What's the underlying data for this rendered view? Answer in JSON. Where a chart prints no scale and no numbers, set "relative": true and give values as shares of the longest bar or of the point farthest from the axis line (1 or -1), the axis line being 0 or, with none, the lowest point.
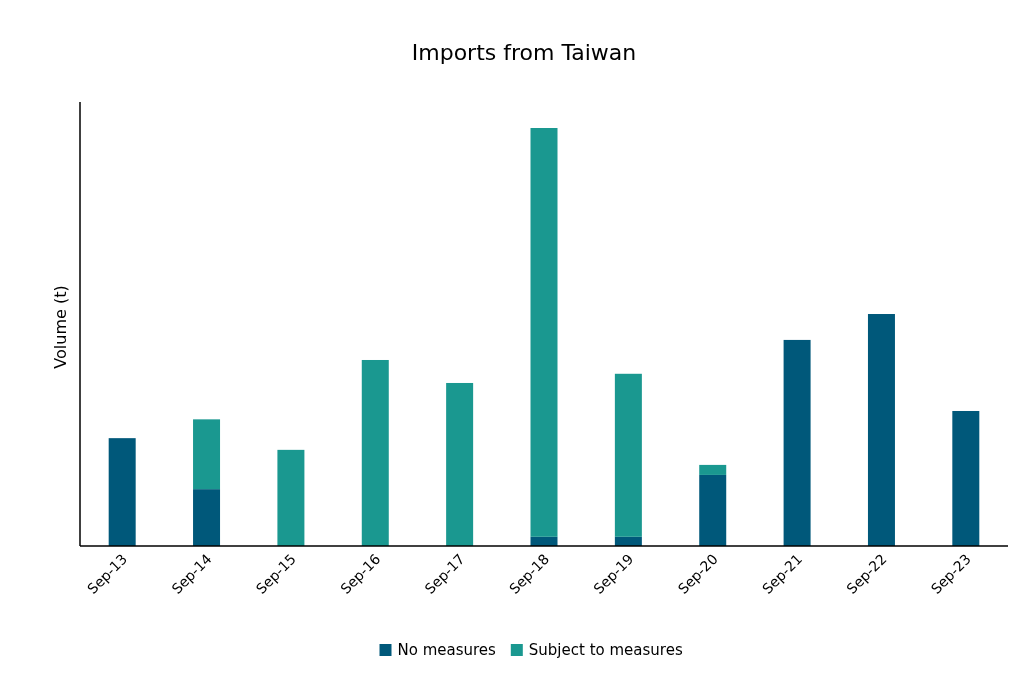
{
  "chart_data": {
    "type": "bar",
    "title": "Imports from Taiwan",
    "ylabel": "Volume (t)",
    "relative": true,
    "stacked": true,
    "legend": "bottom",
    "categories": [
      "Sep-13",
      "Sep-14",
      "Sep-15",
      "Sep-16",
      "Sep-17",
      "Sep-18",
      "Sep-19",
      "Sep-20",
      "Sep-21",
      "Sep-22",
      "Sep-23"
    ],
    "series": [
      {
        "name": "No measures",
        "color": "#00587a",
        "values": [
          0.258,
          0.136,
          0,
          0,
          0,
          0.022,
          0.022,
          0.17,
          0.493,
          0.555,
          0.323
        ]
      },
      {
        "name": "Subject to measures",
        "color": "#1a9890",
        "values": [
          0,
          0.167,
          0.23,
          0.445,
          0.39,
          0.978,
          0.39,
          0.024,
          0,
          0,
          0
        ]
      }
    ]
  }
}
